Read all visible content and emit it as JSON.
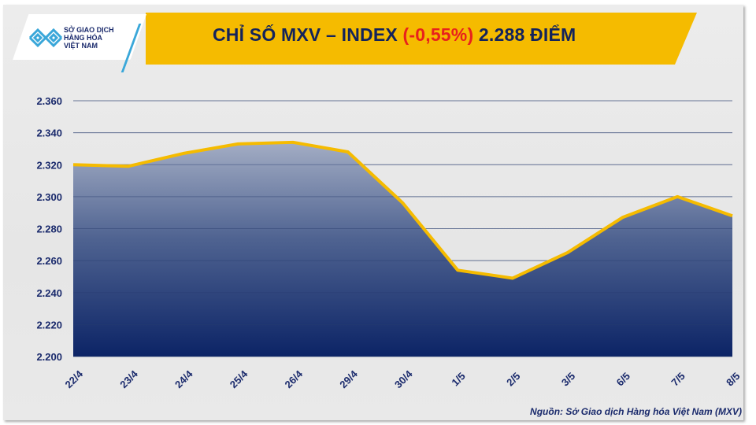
{
  "header": {
    "logo_lines": [
      "SỞ GIAO DỊCH",
      "HÀNG HÓA",
      "VIỆT NAM"
    ],
    "title_prefix": "CHỈ SỐ MXV – INDEX ",
    "title_change": "(-0,55%)",
    "title_suffix": " 2.288 ĐIỂM"
  },
  "source": "Nguồn: Sở Giao dịch Hàng hóa Việt Nam (MXV)",
  "colors": {
    "banner": "#f5bb00",
    "line": "#f5bb00",
    "area_top": "#8e9ab5",
    "area_bottom": "#0c2466",
    "text": "#13235b",
    "negative": "#e8211c",
    "logo_blue": "#3aa7d9"
  },
  "chart_data": {
    "type": "area",
    "title": "CHỈ SỐ MXV – INDEX (-0,55%) 2.288 ĐIỂM",
    "xlabel": "",
    "ylabel": "",
    "categories": [
      "22/4",
      "23/4",
      "24/4",
      "25/4",
      "26/4",
      "29/4",
      "30/4",
      "1/5",
      "2/5",
      "3/5",
      "6/5",
      "7/5",
      "8/5"
    ],
    "values": [
      2320,
      2319,
      2327,
      2333,
      2334,
      2328,
      2296,
      2254,
      2249,
      2265,
      2287,
      2300,
      2288
    ],
    "ylim": [
      2200,
      2360
    ],
    "yticks": [
      "2.200",
      "2.220",
      "2.240",
      "2.260",
      "2.280",
      "2.300",
      "2.320",
      "2.340",
      "2.360"
    ],
    "grid": true,
    "legend": "none"
  }
}
